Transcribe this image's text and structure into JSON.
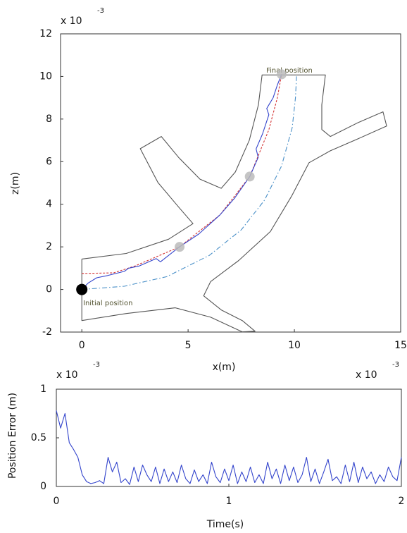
{
  "chart_data": [
    {
      "type": "line",
      "y_scale": {
        "base": "x 10",
        "exponent": "-3"
      },
      "xlabel": "x(m)",
      "ylabel": "z(m)",
      "xlim": [
        -1,
        15
      ],
      "ylim": [
        -2,
        12
      ],
      "xticks": [
        0,
        5,
        10,
        15
      ],
      "yticks": [
        -2,
        0,
        2,
        4,
        6,
        8,
        10,
        12
      ],
      "annotations": [
        "Final position",
        "Initial position"
      ],
      "series": [
        {
          "style": "solid",
          "color": "#555555",
          "x": [
            0,
            2.09,
            4.08,
            5.23,
            4.57,
            3.58,
            2.75,
            3.74,
            4.57,
            5.56,
            6.56,
            7.22,
            7.88,
            8.31,
            8.48,
            11.46,
            11.29,
            11.29,
            11.69,
            13.01,
            14.17,
            14.34,
            12.85,
            11.69,
            10.69,
            9.87,
            8.87,
            7.38,
            6.06,
            5.73,
            6.56,
            7.55,
            8.15,
            7.55,
            6.06,
            4.4,
            2.09,
            0,
            0
          ],
          "values": [
            1.43,
            1.69,
            2.36,
            3.09,
            3.85,
            5.02,
            6.61,
            7.18,
            6.18,
            5.18,
            4.75,
            5.51,
            7.01,
            8.67,
            10.07,
            10.07,
            8.67,
            7.51,
            7.18,
            7.84,
            8.34,
            7.67,
            7.01,
            6.51,
            5.95,
            4.38,
            2.72,
            1.36,
            0.37,
            -0.3,
            -0.96,
            -1.46,
            -1.96,
            -1.99,
            -1.3,
            -0.86,
            -1.13,
            -1.46,
            1.43
          ]
        },
        {
          "style": "dashdot",
          "color": "#4a90c8",
          "x": [
            0,
            2,
            4,
            6,
            7.5,
            8.6,
            9.4,
            9.9,
            10.05,
            10.1
          ],
          "values": [
            0,
            0.15,
            0.6,
            1.6,
            2.8,
            4.2,
            5.8,
            7.6,
            9,
            10
          ]
        },
        {
          "style": "dashed",
          "color": "#d33333",
          "x": [
            0,
            1.5,
            2.5,
            4.6,
            6.5,
            7.9,
            8.8,
            9.2,
            9.4
          ],
          "values": [
            0.75,
            0.78,
            1.1,
            2,
            3.5,
            5.3,
            7.5,
            9,
            10.1
          ]
        },
        {
          "style": "solid",
          "color": "#3344cc",
          "x": [
            0,
            0.3,
            0.7,
            1.2,
            2,
            2.2,
            2.7,
            3.5,
            3.7,
            4.6,
            5.5,
            6.5,
            7.2,
            7.9,
            8.3,
            8.2,
            8.5,
            8.8,
            8.7,
            9.0,
            9.2,
            9.4
          ],
          "values": [
            0,
            0.3,
            0.55,
            0.65,
            0.85,
            1.0,
            1.1,
            1.45,
            1.3,
            2,
            2.6,
            3.5,
            4.3,
            5.3,
            6.2,
            6.6,
            7.3,
            8.2,
            8.5,
            9.0,
            9.6,
            10.1
          ]
        },
        {
          "style": "marker",
          "color": "#bbbbbb",
          "x": [
            4.6,
            7.9,
            9.4
          ],
          "values": [
            2,
            5.3,
            10.1
          ]
        },
        {
          "style": "marker",
          "color": "#000000",
          "x": [
            0
          ],
          "values": [
            0
          ]
        }
      ]
    },
    {
      "type": "line",
      "y_scale": {
        "base": "x 10",
        "exponent": "-3"
      },
      "x_scale": {
        "base": "x 10",
        "exponent": "-3"
      },
      "xlabel": "Time(s)",
      "ylabel": "Position Error (m)",
      "xlim": [
        0,
        2
      ],
      "ylim": [
        0,
        1
      ],
      "xticks": [
        0,
        1,
        2
      ],
      "yticks": [
        0,
        0.5,
        1
      ],
      "series": [
        {
          "style": "solid",
          "color": "#3344cc",
          "x": [
            0,
            0.025,
            0.05,
            0.075,
            0.1,
            0.125,
            0.15,
            0.175,
            0.2,
            0.225,
            0.25,
            0.275,
            0.3,
            0.325,
            0.35,
            0.375,
            0.4,
            0.425,
            0.45,
            0.475,
            0.5,
            0.525,
            0.55,
            0.575,
            0.6,
            0.625,
            0.65,
            0.675,
            0.7,
            0.725,
            0.75,
            0.775,
            0.8,
            0.825,
            0.85,
            0.875,
            0.9,
            0.925,
            0.95,
            0.975,
            1,
            1.025,
            1.05,
            1.075,
            1.1,
            1.125,
            1.15,
            1.175,
            1.2,
            1.225,
            1.25,
            1.275,
            1.3,
            1.325,
            1.35,
            1.375,
            1.4,
            1.425,
            1.45,
            1.475,
            1.5,
            1.525,
            1.55,
            1.575,
            1.6,
            1.625,
            1.65,
            1.675,
            1.7,
            1.725,
            1.75,
            1.775,
            1.8,
            1.825,
            1.85,
            1.875,
            1.9,
            1.925,
            1.95,
            1.975,
            2
          ],
          "values": [
            0.78,
            0.6,
            0.75,
            0.45,
            0.38,
            0.3,
            0.12,
            0.05,
            0.03,
            0.04,
            0.06,
            0.03,
            0.3,
            0.15,
            0.25,
            0.04,
            0.08,
            0.02,
            0.2,
            0.05,
            0.22,
            0.12,
            0.05,
            0.2,
            0.03,
            0.18,
            0.05,
            0.15,
            0.04,
            0.22,
            0.08,
            0.03,
            0.17,
            0.05,
            0.12,
            0.03,
            0.25,
            0.1,
            0.04,
            0.18,
            0.06,
            0.22,
            0.03,
            0.15,
            0.05,
            0.2,
            0.04,
            0.12,
            0.03,
            0.25,
            0.08,
            0.18,
            0.03,
            0.22,
            0.06,
            0.2,
            0.04,
            0.12,
            0.3,
            0.05,
            0.18,
            0.03,
            0.15,
            0.28,
            0.06,
            0.1,
            0.03,
            0.22,
            0.05,
            0.25,
            0.04,
            0.2,
            0.08,
            0.15,
            0.03,
            0.12,
            0.05,
            0.2,
            0.1,
            0.06,
            0.3
          ]
        }
      ]
    }
  ]
}
